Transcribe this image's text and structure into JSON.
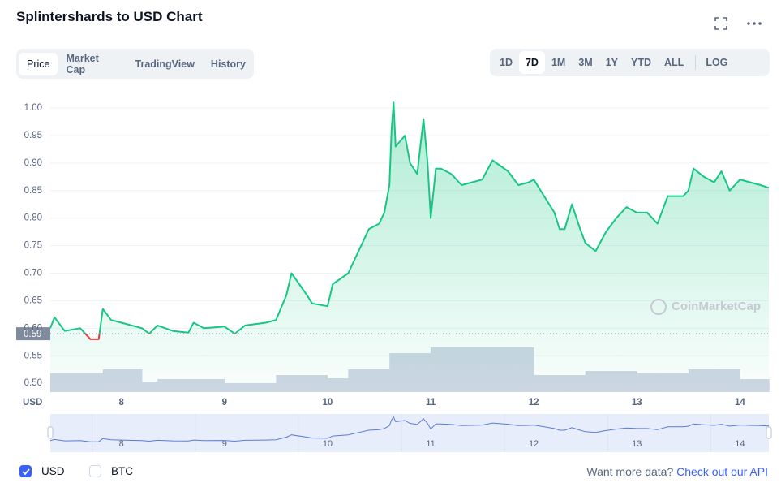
{
  "header": {
    "title": "Splintershards to USD Chart"
  },
  "tabs": {
    "items": [
      "Price",
      "Market Cap",
      "TradingView",
      "History"
    ],
    "active": 0
  },
  "ranges": {
    "items": [
      "1D",
      "7D",
      "1M",
      "3M",
      "1Y",
      "YTD",
      "ALL"
    ],
    "active": 1,
    "log": "LOG"
  },
  "legend": [
    {
      "label": "USD",
      "checked": true
    },
    {
      "label": "BTC",
      "checked": false
    }
  ],
  "footer": {
    "text": "Want more data?",
    "link": "Check out our API"
  },
  "watermark": "CoinMarketCap",
  "chart_data": {
    "type": "line",
    "x_label": "USD",
    "x": [
      7.31,
      7.35,
      7.45,
      7.6,
      7.7,
      7.78,
      7.82,
      7.9,
      8.0,
      8.2,
      8.27,
      8.35,
      8.5,
      8.65,
      8.7,
      8.8,
      9.0,
      9.1,
      9.2,
      9.4,
      9.5,
      9.6,
      9.65,
      9.8,
      9.85,
      10.0,
      10.05,
      10.2,
      10.3,
      10.4,
      10.5,
      10.55,
      10.6,
      10.62,
      10.64,
      10.66,
      10.75,
      10.8,
      10.87,
      10.9,
      10.93,
      10.97,
      11.0,
      11.05,
      11.1,
      11.2,
      11.3,
      11.5,
      11.6,
      11.75,
      11.85,
      11.95,
      12.0,
      12.1,
      12.2,
      12.25,
      12.3,
      12.37,
      12.45,
      12.5,
      12.6,
      12.7,
      12.8,
      12.9,
      13.0,
      13.1,
      13.2,
      13.3,
      13.45,
      13.5,
      13.55,
      13.65,
      13.75,
      13.82,
      13.9,
      14.0,
      14.1,
      14.2,
      14.28
    ],
    "series": [
      {
        "color": "#16c784",
        "down_color": "#ea3943",
        "values": [
          0.6,
          0.62,
          0.595,
          0.6,
          0.58,
          0.58,
          0.635,
          0.615,
          0.61,
          0.6,
          0.59,
          0.605,
          0.595,
          0.592,
          0.61,
          0.6,
          0.603,
          0.59,
          0.605,
          0.61,
          0.615,
          0.66,
          0.7,
          0.66,
          0.645,
          0.64,
          0.68,
          0.7,
          0.74,
          0.78,
          0.79,
          0.81,
          0.86,
          0.96,
          1.01,
          0.93,
          0.95,
          0.9,
          0.88,
          0.93,
          0.98,
          0.9,
          0.8,
          0.89,
          0.89,
          0.88,
          0.86,
          0.87,
          0.905,
          0.885,
          0.86,
          0.865,
          0.87,
          0.84,
          0.81,
          0.78,
          0.78,
          0.825,
          0.78,
          0.755,
          0.74,
          0.775,
          0.8,
          0.82,
          0.81,
          0.81,
          0.79,
          0.84,
          0.84,
          0.85,
          0.89,
          0.875,
          0.865,
          0.885,
          0.85,
          0.87,
          0.865,
          0.86,
          0.855
        ]
      }
    ],
    "volume": [
      23,
      23,
      23,
      23,
      23,
      23,
      28,
      28,
      28,
      13,
      13,
      16,
      16,
      16,
      16,
      16,
      11,
      11,
      11,
      11,
      21,
      21,
      21,
      21,
      21,
      17,
      17,
      28,
      28,
      28,
      28,
      28,
      48,
      48,
      48,
      48,
      48,
      48,
      48,
      48,
      48,
      48,
      55,
      55,
      55,
      55,
      55,
      55,
      55,
      55,
      55,
      55,
      21,
      21,
      21,
      21,
      21,
      21,
      21,
      26,
      26,
      26,
      26,
      26,
      23,
      23,
      23,
      23,
      23,
      28,
      28,
      28,
      28,
      28,
      28,
      16,
      16,
      16,
      16
    ],
    "volume_color": "#cfd6e4",
    "baseline": 0.59,
    "xlim": [
      7.31,
      14.28
    ],
    "xticks": [
      8,
      9,
      10,
      11,
      12,
      13,
      14
    ],
    "ylim": [
      0.484,
      1.034
    ],
    "yticks": [
      {
        "value": 0.5,
        "label": "0.50"
      },
      0.55,
      {
        "value": 0.6,
        "label": "0.60"
      },
      0.65,
      {
        "value": 0.7,
        "label": "0.70"
      },
      0.75,
      {
        "value": 0.8,
        "label": "0.80"
      },
      0.85,
      {
        "value": 0.9,
        "label": "0.90"
      },
      0.95,
      {
        "value": 1,
        "label": "1.00"
      }
    ],
    "grid": true
  }
}
